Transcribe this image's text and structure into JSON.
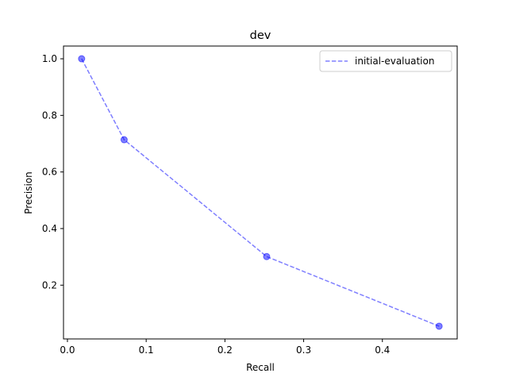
{
  "chart_data": {
    "type": "line",
    "title": "dev",
    "xlabel": "Recall",
    "ylabel": "Precision",
    "xlim": [
      -0.005,
      0.495
    ],
    "ylim": [
      0.01,
      1.045
    ],
    "xticks": [
      0.0,
      0.1,
      0.2,
      0.3,
      0.4
    ],
    "xtick_labels": [
      "0.0",
      "0.1",
      "0.2",
      "0.3",
      "0.4"
    ],
    "yticks": [
      0.2,
      0.4,
      0.6,
      0.8,
      1.0
    ],
    "ytick_labels": [
      "0.2",
      "0.4",
      "0.6",
      "0.8",
      "1.0"
    ],
    "grid": false,
    "legend_position": "top-right",
    "series": [
      {
        "name": "initial-evaluation",
        "color": "#0000ff",
        "line_style": "dashed",
        "marker": "circle",
        "x": [
          0.018,
          0.072,
          0.253,
          0.472
        ],
        "y": [
          1.0,
          0.714,
          0.301,
          0.055
        ]
      }
    ]
  }
}
